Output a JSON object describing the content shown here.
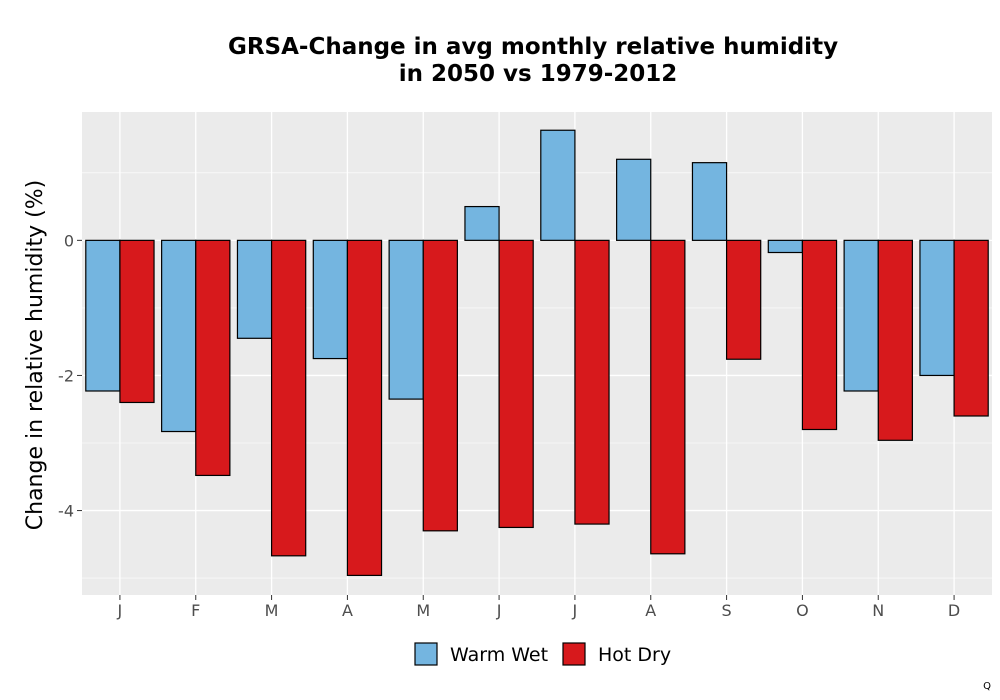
{
  "chart_data": {
    "type": "bar",
    "title_line1": "GRSA-Change in avg monthly relative humidity",
    "title_line2": "in 2050 vs 1979-2012",
    "xlabel": "",
    "ylabel": "Change in relative humidity (%)",
    "categories": [
      "J",
      "F",
      "M",
      "A",
      "M",
      "J",
      "J",
      "A",
      "S",
      "O",
      "N",
      "D"
    ],
    "series": [
      {
        "name": "Warm Wet",
        "color": "#74b5e0",
        "values": [
          -2.23,
          -2.83,
          -1.45,
          -1.75,
          -2.35,
          0.5,
          1.63,
          1.2,
          1.15,
          -0.18,
          -2.23,
          -2.0
        ]
      },
      {
        "name": "Hot Dry",
        "color": "#d7191c",
        "values": [
          -2.4,
          -3.48,
          -4.67,
          -4.96,
          -4.3,
          -4.25,
          -4.2,
          -4.64,
          -1.76,
          -2.8,
          -2.96,
          -2.6
        ]
      }
    ],
    "ylim": [
      -5.25,
      1.9
    ],
    "yticks": [
      0,
      -2,
      -4
    ],
    "ytick_labels": [
      "0",
      "-2",
      "-4"
    ],
    "grid": true,
    "legend_position": "bottom",
    "panel_color": "#ebebeb",
    "bar_outline": "#000000"
  },
  "corner_mark": "Q"
}
